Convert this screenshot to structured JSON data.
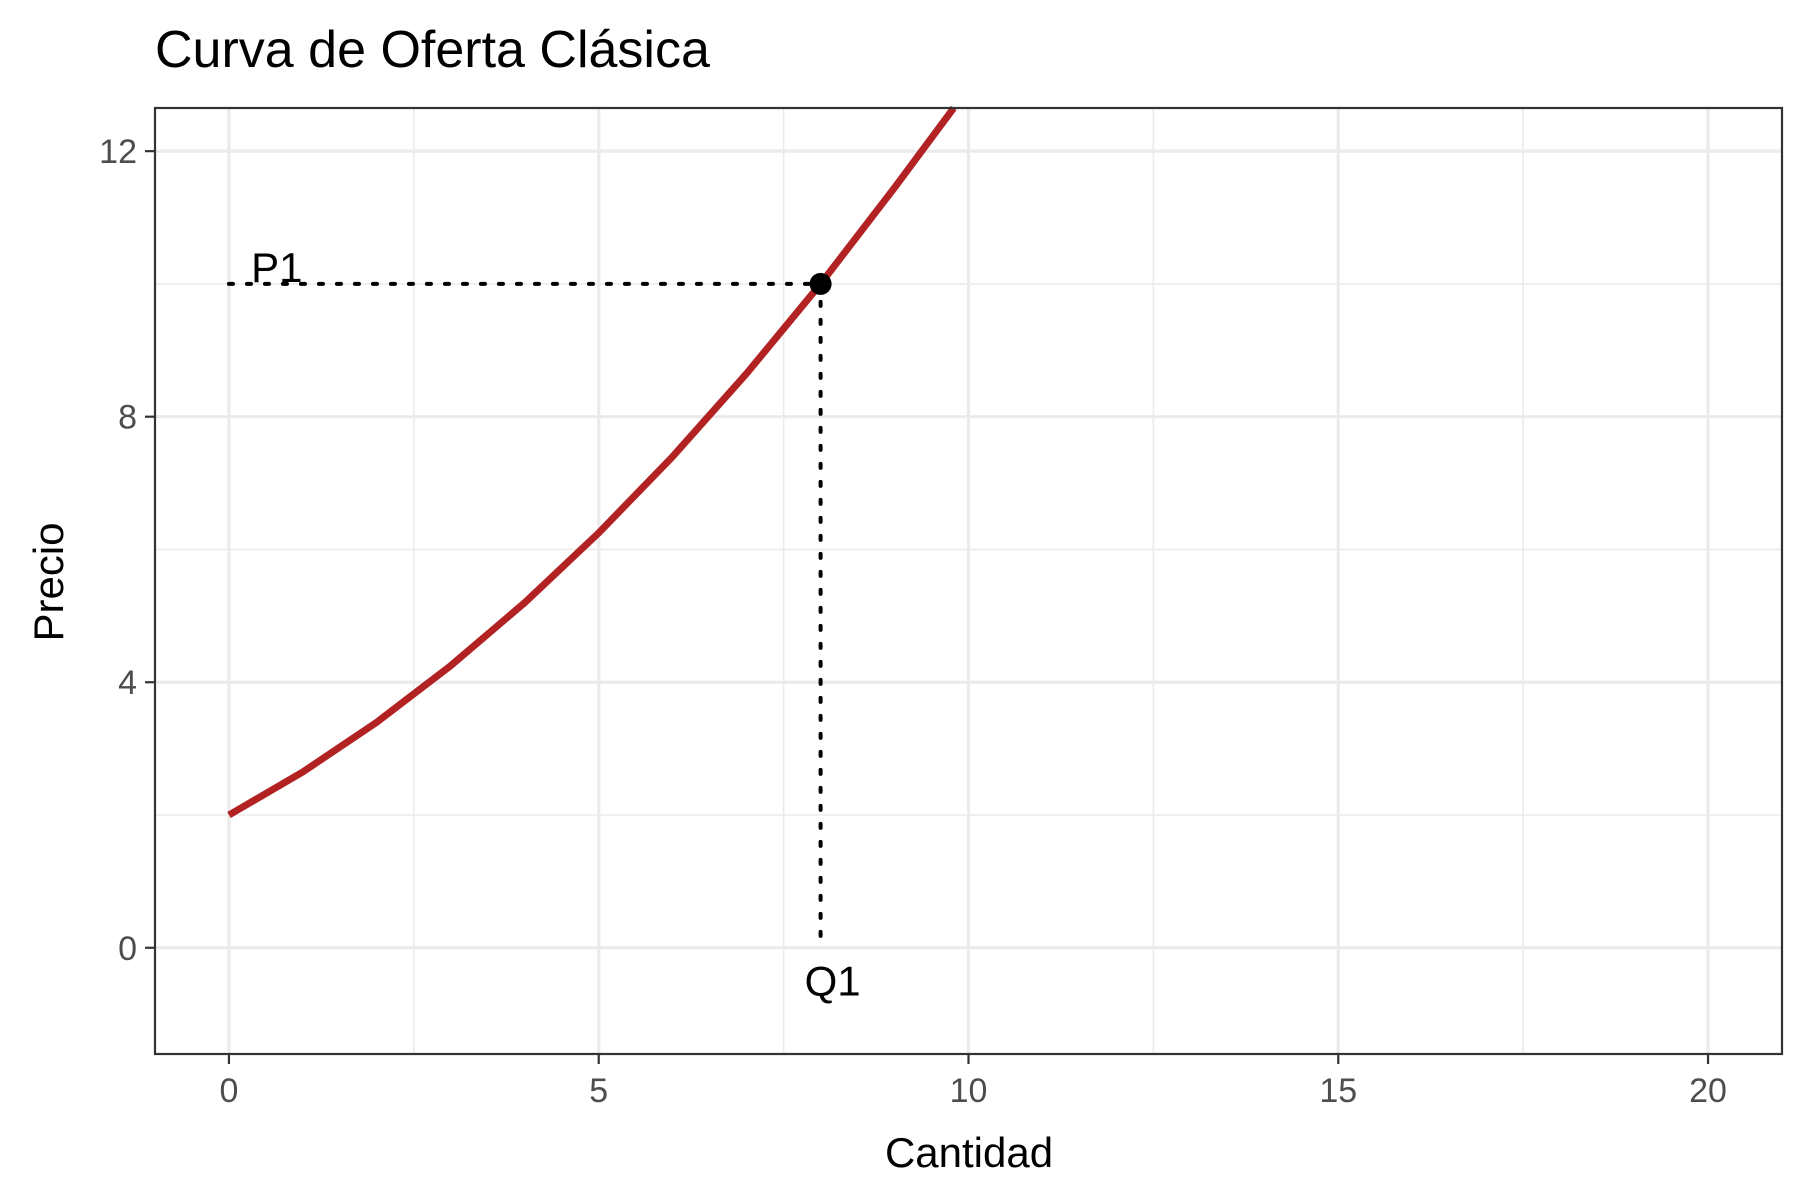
{
  "chart_data": {
    "type": "line",
    "title": "Curva de Oferta Clásica",
    "xlabel": "Cantidad",
    "ylabel": "Precio",
    "xlim": [
      -1,
      21
    ],
    "ylim": [
      -1.6,
      12.65
    ],
    "x_ticks": [
      0,
      5,
      10,
      15,
      20
    ],
    "y_ticks": [
      0,
      4,
      8,
      12
    ],
    "grid": true,
    "legend": "none",
    "colors": {
      "curve": "#b22222",
      "point": "#000000"
    },
    "series": [
      {
        "x": [
          0,
          1,
          2,
          3,
          4,
          5,
          6,
          7,
          8,
          9,
          9.8
        ],
        "y": [
          2.0,
          2.65,
          3.4,
          4.25,
          5.2,
          6.25,
          7.4,
          8.65,
          10.0,
          11.45,
          12.65
        ]
      }
    ],
    "point": {
      "x": 8,
      "y": 10
    },
    "annotations": [
      {
        "text": "P1",
        "x": 0.3,
        "y": 10
      },
      {
        "text": "Q1",
        "x": 8,
        "y": -0.3
      }
    ]
  }
}
